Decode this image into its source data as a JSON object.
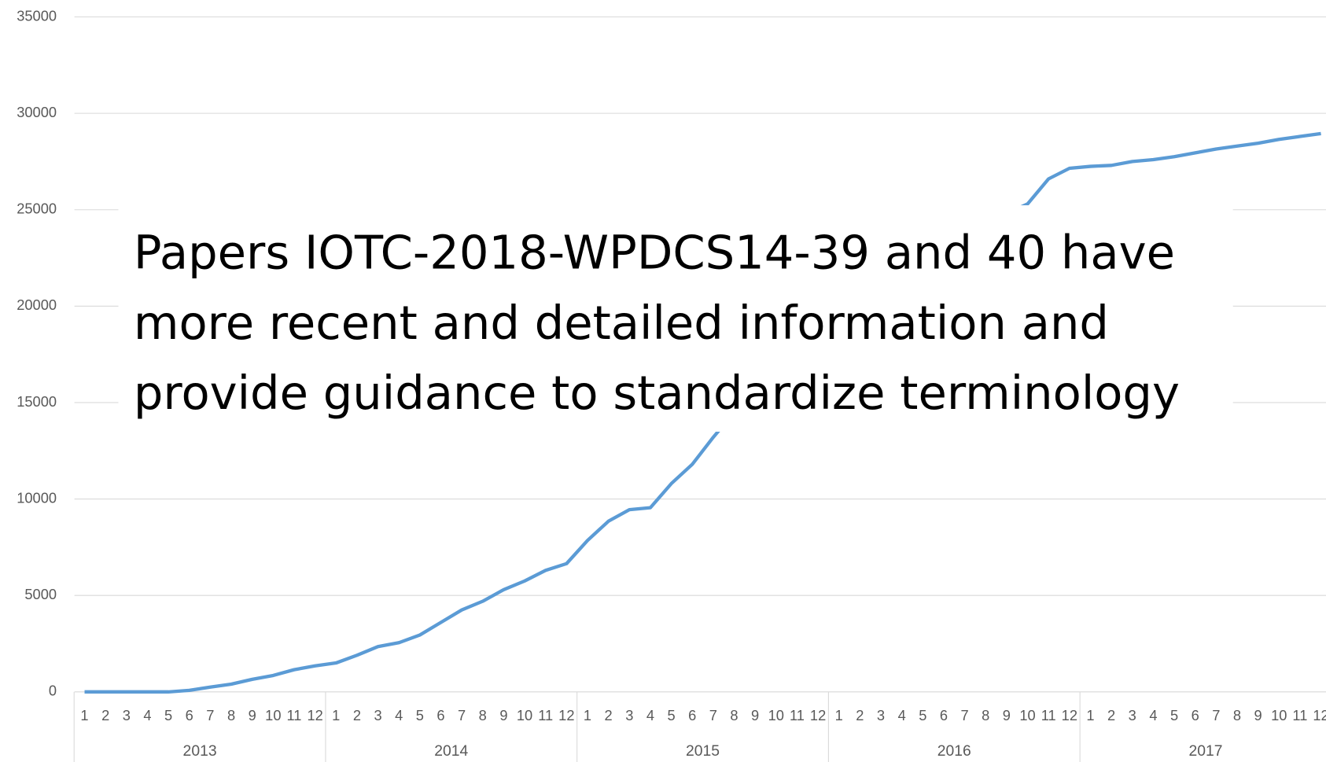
{
  "chart_data": {
    "type": "line",
    "annotation": [
      "Papers IOTC-2018-WPDCS14-39 and 40 have",
      "more recent and detailed information and",
      "provide guidance to standardize terminology"
    ],
    "categories": [
      "1",
      "2",
      "3",
      "4",
      "5",
      "6",
      "7",
      "8",
      "9",
      "10",
      "11",
      "12",
      "1",
      "2",
      "3",
      "4",
      "5",
      "6",
      "7",
      "8",
      "9",
      "10",
      "11",
      "12",
      "1",
      "2",
      "3",
      "4",
      "5",
      "6",
      "7",
      "8",
      "9",
      "10",
      "11",
      "12",
      "1",
      "2",
      "3",
      "4",
      "5",
      "6",
      "7",
      "8",
      "9",
      "10",
      "11",
      "12",
      "1",
      "2",
      "3",
      "4",
      "5",
      "6",
      "7",
      "8",
      "9",
      "10",
      "11",
      "12"
    ],
    "groups": [
      "2013",
      "2014",
      "2015",
      "2016",
      "2017"
    ],
    "series": [
      {
        "color": "#5b9bd5",
        "values": [
          0,
          0,
          0,
          0,
          0,
          80,
          250,
          400,
          650,
          850,
          1150,
          1350,
          1500,
          1900,
          2350,
          2550,
          2950,
          3600,
          4250,
          4700,
          5300,
          5750,
          6300,
          6650,
          7850,
          8850,
          9450,
          9550,
          10800,
          11800,
          13200,
          14500,
          15800,
          17000,
          18000,
          19000,
          19800,
          20600,
          21300,
          22000,
          22600,
          23200,
          23800,
          24300,
          24800,
          25300,
          26600,
          27150,
          27250,
          27300,
          27500,
          27600,
          27750,
          27950,
          28150,
          28300,
          28450,
          28650,
          28800,
          28950
        ]
      }
    ],
    "ylim": [
      0,
      35000
    ],
    "yticks": [
      0,
      5000,
      10000,
      15000,
      20000,
      25000,
      30000,
      35000
    ],
    "grid": true
  }
}
